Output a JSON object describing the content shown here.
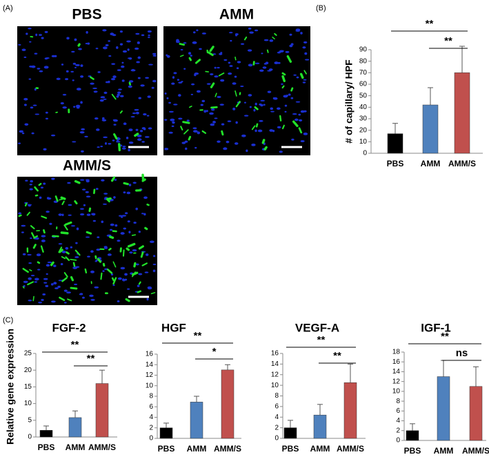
{
  "panel_labels": [
    "(A)",
    "(B)",
    "(C)"
  ],
  "image_titles": [
    "PBS",
    "AMM",
    "AMM/S"
  ],
  "shared_y_label": "Relative gene expression",
  "chart_data": [
    {
      "type": "bar",
      "y_label": "# of capillary/ HPF",
      "categories": [
        "PBS",
        "AMM",
        "AMM/S"
      ],
      "values": [
        17,
        42,
        70
      ],
      "errors": [
        9,
        15,
        23
      ],
      "colors": [
        "#000000",
        "#4f81bd",
        "#c0504d"
      ],
      "ylim": [
        0,
        90
      ],
      "yticks": [
        0,
        10,
        20,
        30,
        40,
        50,
        60,
        70,
        80,
        90
      ],
      "annotations": [
        "**",
        "**"
      ]
    },
    {
      "type": "bar",
      "title": "FGF-2",
      "categories": [
        "PBS",
        "AMM",
        "AMM/S"
      ],
      "values": [
        2,
        5.8,
        16
      ],
      "errors": [
        1.3,
        2,
        4
      ],
      "colors": [
        "#000000",
        "#4f81bd",
        "#c0504d"
      ],
      "ylim": [
        0,
        25
      ],
      "yticks": [
        0,
        5,
        10,
        15,
        20,
        25
      ],
      "annotations": [
        "**",
        "**"
      ]
    },
    {
      "type": "bar",
      "title": "HGF",
      "categories": [
        "PBS",
        "AMM",
        "AMM/S"
      ],
      "values": [
        2,
        6.9,
        13
      ],
      "errors": [
        0.9,
        1.1,
        1
      ],
      "colors": [
        "#000000",
        "#4f81bd",
        "#c0504d"
      ],
      "ylim": [
        0,
        16
      ],
      "yticks": [
        0,
        2,
        4,
        6,
        8,
        10,
        12,
        14,
        16
      ],
      "annotations": [
        "**",
        "*"
      ]
    },
    {
      "type": "bar",
      "title": "VEGF-A",
      "categories": [
        "PBS",
        "AMM",
        "AMM/S"
      ],
      "values": [
        2,
        4.4,
        10.5
      ],
      "errors": [
        1.4,
        2,
        3.5
      ],
      "colors": [
        "#000000",
        "#4f81bd",
        "#c0504d"
      ],
      "ylim": [
        0,
        16
      ],
      "yticks": [
        0,
        2,
        4,
        6,
        8,
        10,
        12,
        14,
        16
      ],
      "annotations": [
        "**",
        "**"
      ]
    },
    {
      "type": "bar",
      "title": "IGF-1",
      "categories": [
        "PBS",
        "AMM",
        "AMM/S"
      ],
      "values": [
        2,
        13,
        11
      ],
      "errors": [
        1.4,
        3.3,
        4
      ],
      "colors": [
        "#000000",
        "#4f81bd",
        "#c0504d"
      ],
      "ylim": [
        0,
        18
      ],
      "yticks": [
        0,
        2,
        4,
        6,
        8,
        10,
        12,
        14,
        16,
        18
      ],
      "annotations": [
        "**",
        "ns"
      ]
    }
  ]
}
